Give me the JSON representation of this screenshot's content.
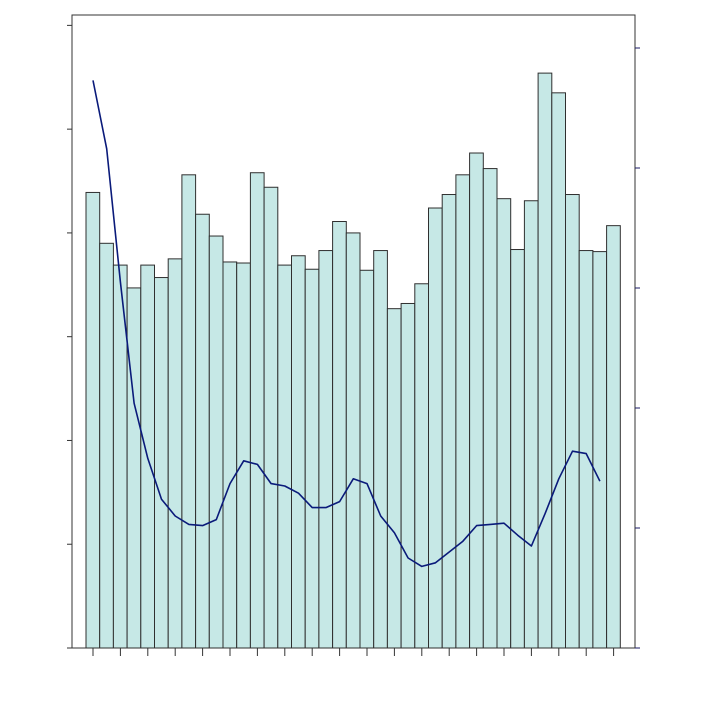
{
  "chart_data": {
    "type": "bar",
    "title": "",
    "xlabel": "",
    "ylabel": "",
    "y2label": "",
    "grid": false,
    "legend": "none",
    "ylim": [
      0,
      6.1
    ],
    "y2lim": [
      0,
      5.15
    ],
    "series": [
      {
        "kind": "bar",
        "axis": "left",
        "values": [
          4.39,
          3.9,
          3.69,
          3.47,
          3.69,
          3.57,
          3.75,
          4.56,
          4.18,
          3.97,
          3.72,
          3.71,
          4.58,
          4.44,
          3.69,
          3.78,
          3.65,
          3.83,
          4.11,
          4.0,
          3.64,
          3.83,
          3.27,
          3.32,
          3.51,
          4.24,
          4.37,
          4.56,
          4.77,
          4.62,
          4.33,
          3.84,
          4.31,
          5.54,
          5.35,
          4.37,
          3.83,
          3.82,
          4.07
        ]
      },
      {
        "kind": "line",
        "axis": "right",
        "values": [
          4.73,
          4.16,
          3.05,
          2.04,
          1.58,
          1.24,
          1.1,
          1.03,
          1.02,
          1.07,
          1.37,
          1.56,
          1.53,
          1.37,
          1.35,
          1.29,
          1.17,
          1.17,
          1.22,
          1.41,
          1.37,
          1.1,
          0.96,
          0.75,
          0.68,
          0.71,
          0.8,
          0.89,
          1.02,
          1.03,
          1.04,
          0.94,
          0.85,
          1.12,
          1.41,
          1.64,
          1.62,
          1.39
        ]
      }
    ],
    "colors": {
      "bar_fill": "#c6e8e6",
      "bar_stroke": "#2f2f2f",
      "line": "#0a1a7a",
      "axis": "#333333",
      "right_axis": "#1a1a66"
    }
  }
}
